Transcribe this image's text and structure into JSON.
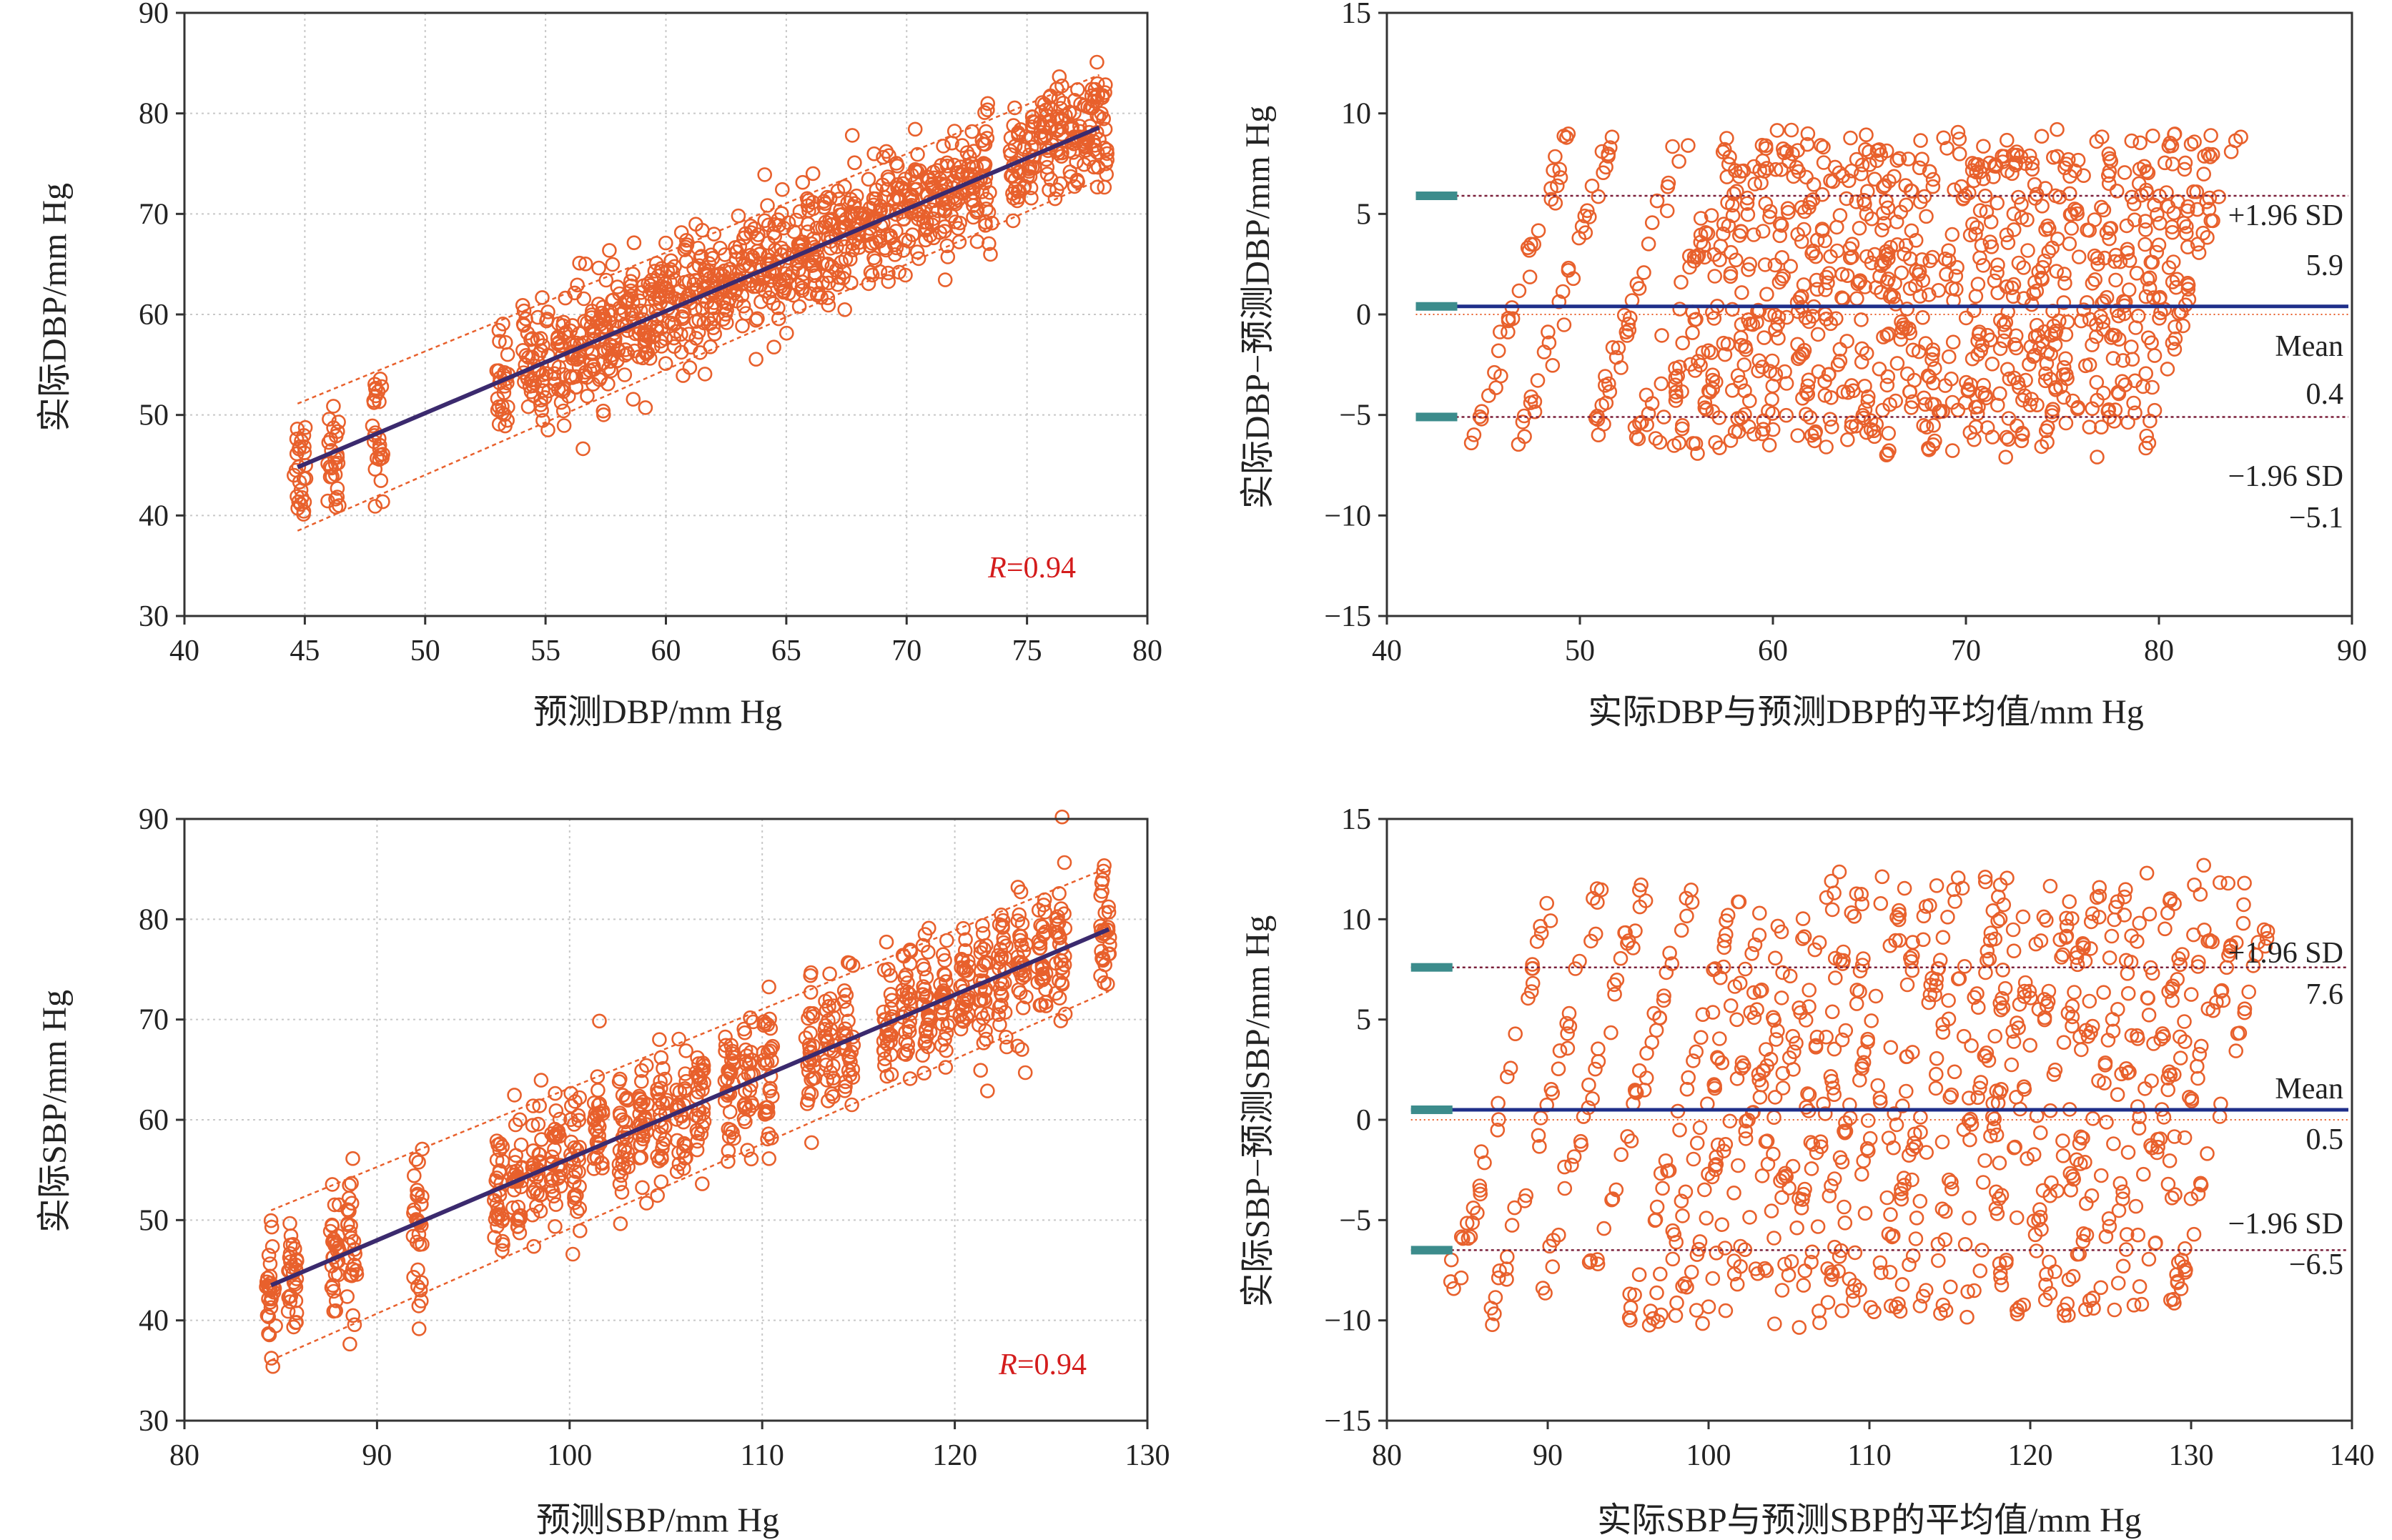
{
  "colors": {
    "point": "#e8602c",
    "band": "#e8602c",
    "fit": "#3b2a6e",
    "mean": "#1f2f8a",
    "limit": "#7a1f3a",
    "marker": "#3c8c8c",
    "grid": "#c8c8c8",
    "r_text": "#d41c1c"
  },
  "chart_data": [
    {
      "type": "scatter",
      "id": "dbp_corr",
      "xlabel": "预测DBP/mm Hg",
      "ylabel": "实际DBP/mm Hg",
      "xlim": [
        40,
        80
      ],
      "ylim": [
        30,
        90
      ],
      "xticks": [
        "40",
        "45",
        "50",
        "55",
        "60",
        "65",
        "70",
        "75",
        "80"
      ],
      "yticks": [
        "30",
        "40",
        "50",
        "60",
        "70",
        "80",
        "90"
      ],
      "grid": true,
      "r_label": "R",
      "r_value": "=0.94",
      "fit": {
        "x": [
          44.7,
          78
        ],
        "y": [
          44.8,
          78.6
        ]
      },
      "band_half_width": 5.5,
      "point_x": [
        44.8,
        46.2,
        48.0,
        53.2,
        54.3,
        54.9,
        55.6,
        56.2,
        56.8,
        57.4,
        57.9,
        58.5,
        59.1,
        59.6,
        60.2,
        60.8,
        61.4,
        61.9,
        62.5,
        63.1,
        63.7,
        64.3,
        64.9,
        65.5,
        66.1,
        66.7,
        67.3,
        67.9,
        68.5,
        69.1,
        69.7,
        70.3,
        70.9,
        71.5,
        72.1,
        72.7,
        73.3,
        74.5,
        75.1,
        75.8,
        76.4,
        77.0,
        77.6,
        78.1
      ],
      "point_sd": 3.0,
      "point_count": 26
    },
    {
      "type": "scatter",
      "id": "dbp_bland_altman",
      "xlabel": "实际DBP与预测DBP的平均值/mm Hg",
      "ylabel": "实际DBP−预测DBP/mm Hg",
      "xlim": [
        40,
        90
      ],
      "ylim": [
        -15,
        15
      ],
      "xticks": [
        "40",
        "50",
        "60",
        "70",
        "80",
        "90"
      ],
      "yticks": [
        "−15",
        "−10",
        "−5",
        "0",
        "5",
        "10",
        "15"
      ],
      "grid": false,
      "mean": 0.4,
      "upper": 5.9,
      "lower": -5.1,
      "labels": {
        "upper_title": "+1.96 SD",
        "upper_value": "5.9",
        "mean_title": "Mean",
        "mean_value": "0.4",
        "lower_title": "−1.96 SD",
        "lower_value": "−5.1"
      },
      "stripe_x0": [
        44.5,
        46.8,
        50.5,
        53,
        54,
        55,
        56,
        57,
        58,
        59,
        60,
        61,
        62,
        63,
        64,
        65,
        66,
        67,
        68,
        69,
        70,
        71,
        72,
        73,
        74,
        75,
        76,
        77,
        78,
        79
      ],
      "stripe_range": [
        -6.5,
        9
      ]
    },
    {
      "type": "scatter",
      "id": "sbp_corr",
      "xlabel": "预测SBP/mm Hg",
      "ylabel": "实际SBP/mm Hg",
      "xlim": [
        80,
        130
      ],
      "ylim": [
        30,
        90
      ],
      "xticks": [
        "80",
        "90",
        "100",
        "110",
        "120",
        "130"
      ],
      "yticks": [
        "30",
        "40",
        "50",
        "60",
        "70",
        "80",
        "90"
      ],
      "grid": true,
      "r_label": "R",
      "r_value": "=0.94",
      "fit": {
        "x": [
          84.5,
          128
        ],
        "y": [
          43.5,
          79
        ]
      },
      "band_half_width": 6.5,
      "point_x": [
        84.5,
        85.6,
        87.8,
        88.7,
        92.1,
        96.3,
        97.3,
        98.3,
        99.3,
        100.3,
        101.5,
        102.8,
        103.8,
        104.8,
        105.8,
        106.8,
        108.3,
        109.3,
        110.3,
        112.5,
        113.5,
        114.5,
        116.5,
        117.5,
        118.5,
        119.5,
        120.5,
        121.5,
        122.5,
        123.5,
        124.5,
        125.5,
        127.8
      ],
      "point_sd": 3.5,
      "point_count": 30
    },
    {
      "type": "scatter",
      "id": "sbp_bland_altman",
      "xlabel": "实际SBP与预测SBP的平均值/mm Hg",
      "ylabel": "实际SBP−预测SBP/mm Hg",
      "xlim": [
        80,
        140
      ],
      "ylim": [
        -15,
        15
      ],
      "xticks": [
        "80",
        "90",
        "100",
        "110",
        "120",
        "130",
        "140"
      ],
      "yticks": [
        "−15",
        "−10",
        "−5",
        "0",
        "5",
        "10",
        "15"
      ],
      "grid": false,
      "mean": 0.5,
      "upper": 7.6,
      "lower": -6.5,
      "labels": {
        "upper_title": "+1.96 SD",
        "upper_value": "7.6",
        "mean_title": "Mean",
        "mean_value": "0.5",
        "lower_title": "−1.96 SD",
        "lower_value": "−6.5"
      },
      "stripe_x0": [
        83.5,
        86.5,
        89,
        92,
        95,
        96.5,
        98,
        99.5,
        101,
        102.5,
        104,
        105.5,
        107,
        108.5,
        110,
        111.5,
        113,
        114.5,
        116,
        117.5,
        119,
        120.5,
        122,
        123.5,
        125,
        126.5,
        128.5
      ],
      "stripe_range": [
        -10,
        12
      ]
    }
  ]
}
